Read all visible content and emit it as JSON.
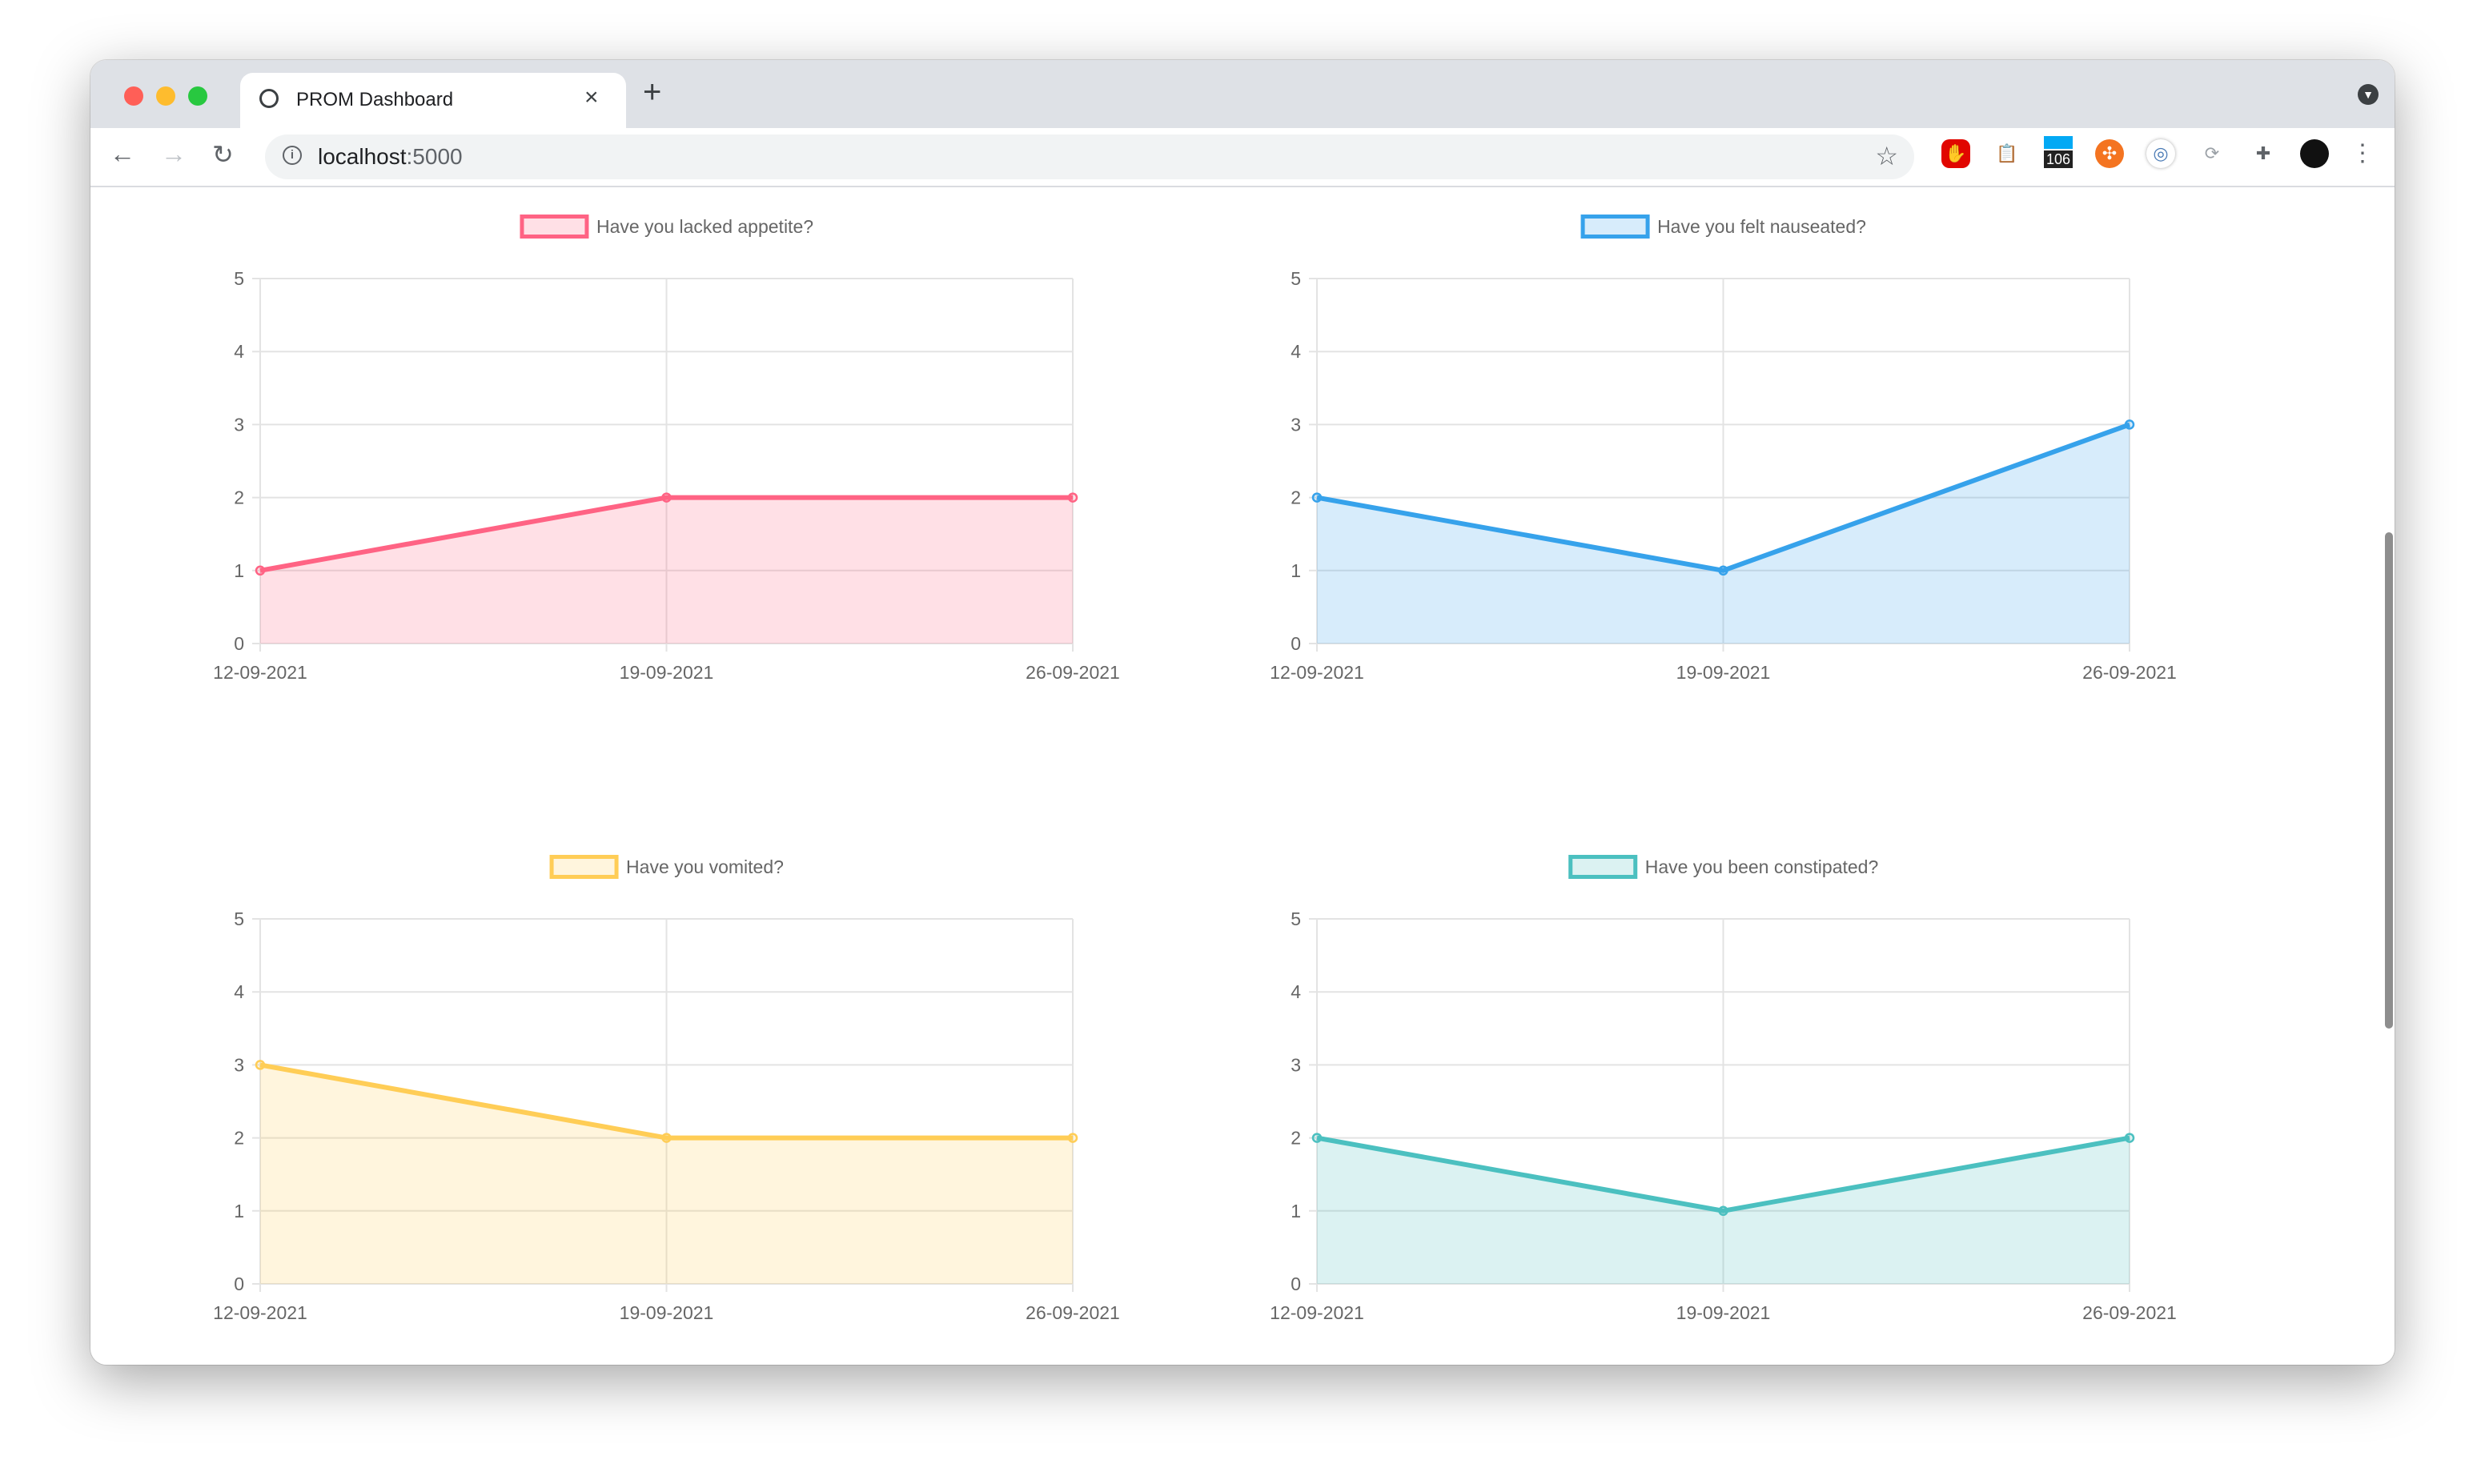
{
  "browser": {
    "tab_title": "PROM Dashboard",
    "tab_close": "×",
    "new_tab": "+",
    "url_host": "localhost",
    "url_port": ":5000",
    "extension_badge": "106"
  },
  "chart_data": [
    {
      "type": "line",
      "fill": true,
      "title": "Have you lacked appetite?",
      "categories": [
        "12-09-2021",
        "19-09-2021",
        "26-09-2021"
      ],
      "values": [
        1,
        2,
        2
      ],
      "ylim": [
        0,
        5
      ],
      "yticks": [
        "0",
        "1",
        "2",
        "3",
        "4",
        "5"
      ],
      "color": "#ff6384",
      "fill_color": "rgba(255,99,132,0.2)",
      "legend": "top",
      "grid": true
    },
    {
      "type": "line",
      "fill": true,
      "title": "Have you felt nauseated?",
      "categories": [
        "12-09-2021",
        "19-09-2021",
        "26-09-2021"
      ],
      "values": [
        2,
        1,
        3
      ],
      "ylim": [
        0,
        5
      ],
      "yticks": [
        "0",
        "1",
        "2",
        "3",
        "4",
        "5"
      ],
      "color": "#36a2eb",
      "fill_color": "rgba(54,162,235,0.2)",
      "legend": "top",
      "grid": true
    },
    {
      "type": "line",
      "fill": true,
      "title": "Have you vomited?",
      "categories": [
        "12-09-2021",
        "19-09-2021",
        "26-09-2021"
      ],
      "values": [
        3,
        2,
        2
      ],
      "ylim": [
        0,
        5
      ],
      "yticks": [
        "0",
        "1",
        "2",
        "3",
        "4",
        "5"
      ],
      "color": "#ffcd56",
      "fill_color": "rgba(255,205,86,0.2)",
      "legend": "top",
      "grid": true
    },
    {
      "type": "line",
      "fill": true,
      "title": "Have you been constipated?",
      "categories": [
        "12-09-2021",
        "19-09-2021",
        "26-09-2021"
      ],
      "values": [
        2,
        1,
        2
      ],
      "ylim": [
        0,
        5
      ],
      "yticks": [
        "0",
        "1",
        "2",
        "3",
        "4",
        "5"
      ],
      "color": "#4bc0c0",
      "fill_color": "rgba(75,192,192,0.2)",
      "legend": "top",
      "grid": true
    }
  ]
}
